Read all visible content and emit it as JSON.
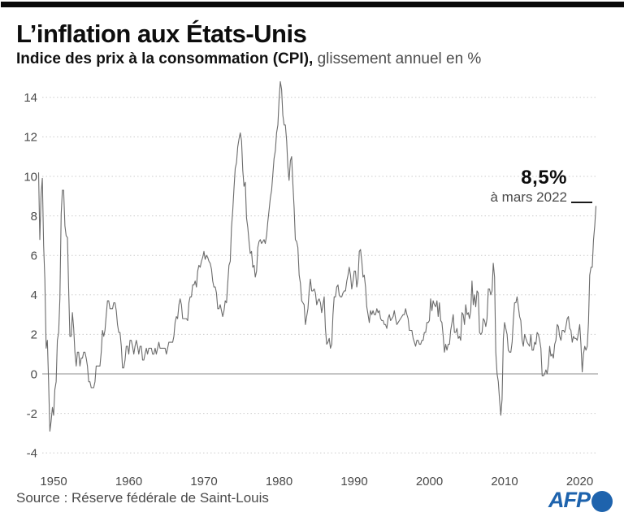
{
  "chart_data": {
    "type": "line",
    "title": "L’inflation aux États-Unis",
    "subtitle_bold": "Indice des prix à la consommation (CPI),",
    "subtitle_regular": " glissement annuel en %",
    "ylabel": "glissement annuel en %",
    "unit": "%",
    "grid": "horizontal dotted, solid zero axis",
    "legend_position": "none",
    "xlim": [
      1948,
      2022.25
    ],
    "ylim": [
      -4.4,
      15
    ],
    "y_ticks": [
      14,
      12,
      10,
      8,
      6,
      4,
      2,
      0,
      -2,
      -4
    ],
    "x_ticks": [
      1950,
      1960,
      1970,
      1980,
      1990,
      2000,
      2010,
      2020
    ],
    "annotation": {
      "value_label": "8,5%",
      "date_label": "à mars 2022"
    },
    "source": "Source : Réserve fédérale de Saint-Louis",
    "series": [
      {
        "name": "CPI États-Unis, glissement annuel en %",
        "color": "#6b6b6b",
        "x_start_year": 1948,
        "x_step_months": 2,
        "values": [
          10.2,
          6.8,
          9.1,
          9.9,
          6.5,
          4.8,
          1.3,
          1.7,
          -0.4,
          -2.9,
          -2.4,
          -1.7,
          -2.1,
          -0.8,
          -0.4,
          1.7,
          2.1,
          3.8,
          8.1,
          9.3,
          9.3,
          7.5,
          7.0,
          6.9,
          4.3,
          1.9,
          1.9,
          3.1,
          2.3,
          1.1,
          0.4,
          1.1,
          1.1,
          0.4,
          0.8,
          0.8,
          1.1,
          1.1,
          0.8,
          0.4,
          -0.4,
          -0.4,
          -0.7,
          -0.7,
          -0.7,
          -0.4,
          0.4,
          0.4,
          0.4,
          0.4,
          1.1,
          2.2,
          1.9,
          2.2,
          3.0,
          3.7,
          3.7,
          3.3,
          3.3,
          3.3,
          3.6,
          3.6,
          3.2,
          2.5,
          2.1,
          2.1,
          1.4,
          0.3,
          0.3,
          0.7,
          1.4,
          1.4,
          1.0,
          1.7,
          1.7,
          1.4,
          1.0,
          1.4,
          1.7,
          1.4,
          1.0,
          1.4,
          1.4,
          0.7,
          0.7,
          1.0,
          1.3,
          1.0,
          1.3,
          1.3,
          1.3,
          1.0,
          1.0,
          1.3,
          1.0,
          1.3,
          1.6,
          1.3,
          1.3,
          1.3,
          1.3,
          1.3,
          1.0,
          1.3,
          1.6,
          1.6,
          1.6,
          1.6,
          1.9,
          2.6,
          2.9,
          2.8,
          3.5,
          3.8,
          3.5,
          2.8,
          2.8,
          2.8,
          2.8,
          2.7,
          3.6,
          3.9,
          3.9,
          4.5,
          4.5,
          4.7,
          4.4,
          5.2,
          5.5,
          5.4,
          5.7,
          5.9,
          6.2,
          5.8,
          6.0,
          5.9,
          5.7,
          5.6,
          5.3,
          4.7,
          4.4,
          4.4,
          4.1,
          3.3,
          3.3,
          3.5,
          3.2,
          2.9,
          3.2,
          3.7,
          3.6,
          4.6,
          5.5,
          5.7,
          7.4,
          8.3,
          9.4,
          10.4,
          10.7,
          11.5,
          11.9,
          12.2,
          11.8,
          10.3,
          9.5,
          9.7,
          7.9,
          7.4,
          6.7,
          6.1,
          6.2,
          5.4,
          5.5,
          4.9,
          5.2,
          6.4,
          6.7,
          6.8,
          6.6,
          6.7,
          6.8,
          6.6,
          7.0,
          7.7,
          8.3,
          8.9,
          9.3,
          10.1,
          10.9,
          11.3,
          12.2,
          12.6,
          13.9,
          14.8,
          14.4,
          13.1,
          12.6,
          12.6,
          11.8,
          10.5,
          9.8,
          10.8,
          11.0,
          9.6,
          8.4,
          6.8,
          6.7,
          6.4,
          5.0,
          4.6,
          3.7,
          3.6,
          3.5,
          2.5,
          2.9,
          3.3,
          4.2,
          4.8,
          4.2,
          4.2,
          4.3,
          4.1,
          3.5,
          3.7,
          3.8,
          3.6,
          3.1,
          3.5,
          3.9,
          2.3,
          1.5,
          1.6,
          1.8,
          1.3,
          1.5,
          3.0,
          3.9,
          3.9,
          4.4,
          4.5,
          4.0,
          3.9,
          3.9,
          4.1,
          4.2,
          4.2,
          4.7,
          5.0,
          5.4,
          5.0,
          4.3,
          4.7,
          5.2,
          5.2,
          4.4,
          4.8,
          6.2,
          6.3,
          5.7,
          4.9,
          5.0,
          4.4,
          3.4,
          3.0,
          2.6,
          3.2,
          3.0,
          3.2,
          3.0,
          3.0,
          3.3,
          3.1,
          3.2,
          2.8,
          2.7,
          2.7,
          2.5,
          2.5,
          2.3,
          2.8,
          3.0,
          2.7,
          2.8,
          2.9,
          3.2,
          2.8,
          2.5,
          2.6,
          2.7,
          2.8,
          2.9,
          3.0,
          3.0,
          3.3,
          3.0,
          2.8,
          2.2,
          2.2,
          2.2,
          1.8,
          1.6,
          1.4,
          1.7,
          1.7,
          1.5,
          1.5,
          1.7,
          1.7,
          2.1,
          2.1,
          2.6,
          2.6,
          2.7,
          3.8,
          3.2,
          3.7,
          3.5,
          3.4,
          3.7,
          2.9,
          3.6,
          2.7,
          2.6,
          1.9,
          1.1,
          1.5,
          1.2,
          1.5,
          1.5,
          2.2,
          2.6,
          3.0,
          2.1,
          2.1,
          2.3,
          1.8,
          1.9,
          1.7,
          3.1,
          3.0,
          2.5,
          3.5,
          3.0,
          3.1,
          2.8,
          3.2,
          4.7,
          3.5,
          4.0,
          3.4,
          4.2,
          4.1,
          2.1,
          2.0,
          2.1,
          2.8,
          2.7,
          2.4,
          2.8,
          4.3,
          4.3,
          4.0,
          4.2,
          5.6,
          4.9,
          1.1,
          0.0,
          -0.4,
          -1.3,
          -2.1,
          -1.3,
          1.8,
          2.6,
          2.3,
          2.0,
          1.2,
          1.1,
          1.1,
          1.6,
          2.7,
          3.6,
          3.6,
          3.9,
          3.4,
          2.9,
          2.7,
          1.7,
          1.4,
          2.0,
          1.8,
          1.6,
          1.5,
          1.4,
          2.0,
          1.2,
          1.2,
          1.6,
          1.5,
          2.1,
          2.0,
          1.7,
          1.3,
          -0.1,
          -0.1,
          0.0,
          0.2,
          0.0,
          0.5,
          1.4,
          0.9,
          1.0,
          0.8,
          1.5,
          1.7,
          2.5,
          2.4,
          1.9,
          1.7,
          2.2,
          2.2,
          2.1,
          2.4,
          2.8,
          2.9,
          2.3,
          2.2,
          1.6,
          1.9,
          1.8,
          1.8,
          1.7,
          2.1,
          2.5,
          1.5,
          0.1,
          1.0,
          1.4,
          1.2,
          1.4,
          2.6,
          5.0,
          5.4,
          5.4,
          6.8,
          7.5,
          8.5
        ]
      }
    ]
  },
  "footer": {
    "logo_text": "AFP"
  },
  "colors": {
    "line": "#6b6b6b",
    "grid": "#cccccc",
    "zero_axis": "#8c8c8c",
    "text_dark": "#0d0d0d",
    "text_gray": "#4a4a4a",
    "afp_blue": "#1e63ad",
    "top_bar": "#0a0a0a"
  }
}
